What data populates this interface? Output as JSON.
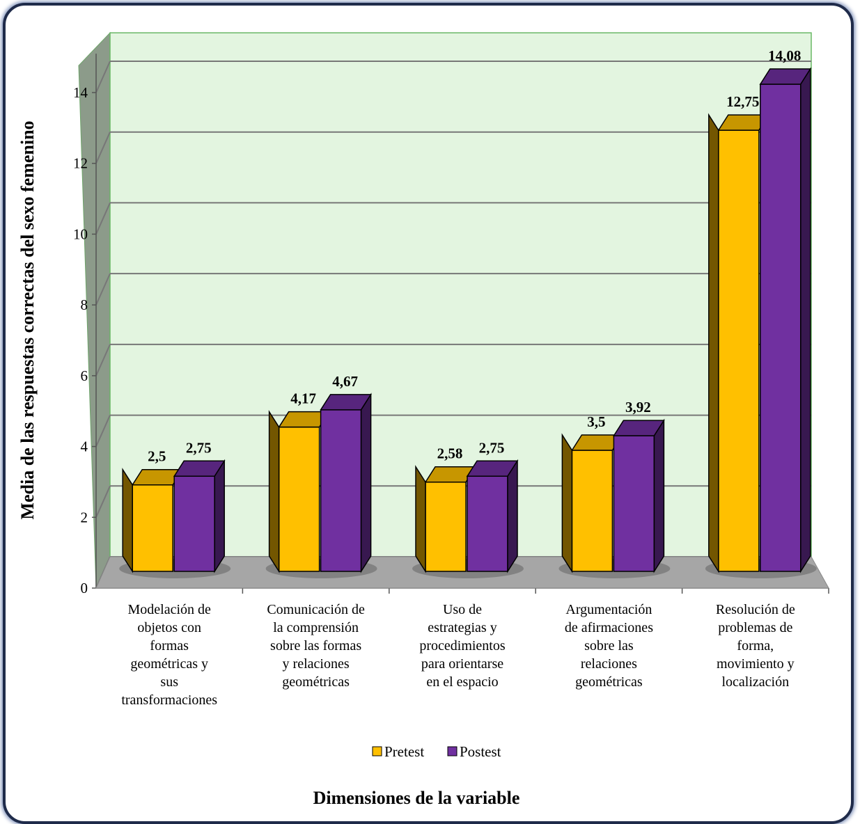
{
  "chart_data": {
    "type": "bar",
    "categories": [
      [
        "Modelación de",
        "objetos con",
        "formas",
        "geométricas y",
        "sus",
        "transformaciones"
      ],
      [
        "Comunicación de",
        "la comprensión",
        "sobre las formas",
        "y relaciones",
        "geométricas"
      ],
      [
        "Uso de",
        "estrategias y",
        "procedimientos",
        "para orientarse",
        "en el espacio"
      ],
      [
        "Argumentación",
        "de afirmaciones",
        "sobre las",
        "relaciones",
        "geométricas"
      ],
      [
        "Resolución de",
        "problemas de",
        "forma,",
        "movimiento y",
        "localización"
      ]
    ],
    "series": [
      {
        "name": "Pretest",
        "values": [
          2.5,
          4.17,
          2.58,
          3.5,
          12.75
        ],
        "labels": [
          "2,5",
          "4,17",
          "2,58",
          "3,5",
          "12,75"
        ],
        "color": "#ffc000"
      },
      {
        "name": "Postest",
        "values": [
          2.75,
          4.67,
          2.75,
          3.92,
          14.08
        ],
        "labels": [
          "2,75",
          "4,67",
          "2,75",
          "3,92",
          "14,08"
        ],
        "color": "#7030a0"
      }
    ],
    "y_ticks": [
      "0",
      "2",
      "4",
      "6",
      "8",
      "10",
      "12",
      "14"
    ],
    "ylim": [
      0,
      15
    ],
    "ylabel": "Media de las respuestas correctas del sexo femenino",
    "xlabel": "Dimensiones de la variable",
    "legend_position": "bottom",
    "grid": true
  }
}
